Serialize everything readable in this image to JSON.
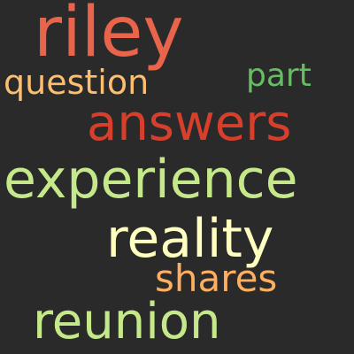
{
  "background_color": "#2a2a2a",
  "words": [
    {
      "id": "riley",
      "text": "riley",
      "color": "#e8644a"
    },
    {
      "id": "question",
      "text": "question",
      "color": "#fdbf6f"
    },
    {
      "id": "part",
      "text": "part",
      "color": "#66bd63"
    },
    {
      "id": "answers",
      "text": "answers",
      "color": "#d73f2d"
    },
    {
      "id": "experience",
      "text": "experience",
      "color": "#c5e88a"
    },
    {
      "id": "reality",
      "text": "reality",
      "color": "#ffffbf"
    },
    {
      "id": "shares",
      "text": "shares",
      "color": "#fdae61"
    },
    {
      "id": "reunion",
      "text": "reunion",
      "color": "#c5e88a"
    }
  ]
}
